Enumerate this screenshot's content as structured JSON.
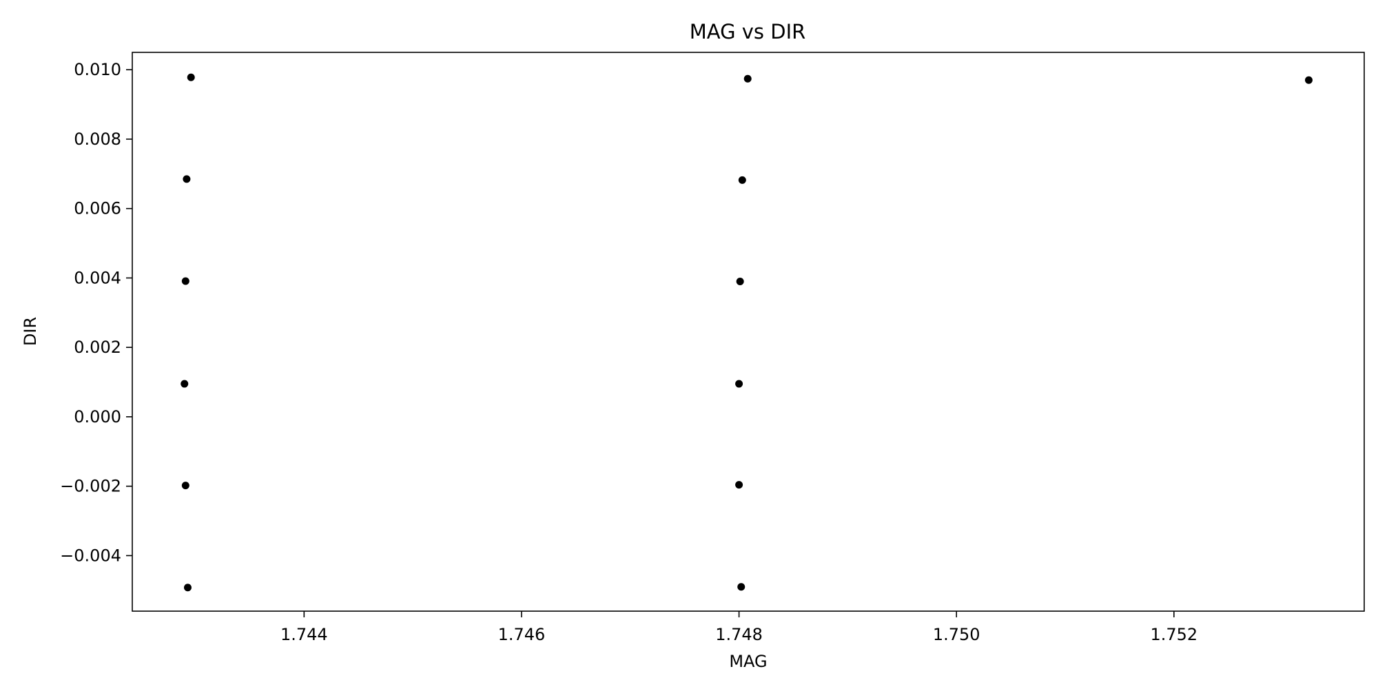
{
  "chart_data": {
    "type": "scatter",
    "title": "MAG vs DIR",
    "xlabel": "MAG",
    "ylabel": "DIR",
    "xlim": [
      1.74242,
      1.75375
    ],
    "ylim": [
      -0.0056,
      0.0105
    ],
    "xticks": [
      1.744,
      1.746,
      1.748,
      1.75,
      1.752
    ],
    "xtick_labels": [
      "1.744",
      "1.746",
      "1.748",
      "1.750",
      "1.752"
    ],
    "yticks": [
      -0.004,
      -0.002,
      0.0,
      0.002,
      0.004,
      0.006,
      0.008,
      0.01
    ],
    "ytick_labels": [
      "−0.004",
      "−0.002",
      "0.000",
      "0.002",
      "0.004",
      "0.006",
      "0.008",
      "0.010"
    ],
    "grid": false,
    "marker_color": "#000000",
    "series": [
      {
        "x": [
          1.74296,
          1.74292,
          1.74291,
          1.7429,
          1.74291,
          1.74293,
          1.74808,
          1.74803,
          1.74801,
          1.748,
          1.748,
          1.74802,
          1.75324
        ],
        "y": [
          0.00978,
          0.00685,
          0.00391,
          0.00095,
          -0.00198,
          -0.00492,
          0.00974,
          0.00682,
          0.0039,
          0.00095,
          -0.00196,
          -0.0049,
          0.0097
        ]
      }
    ]
  }
}
